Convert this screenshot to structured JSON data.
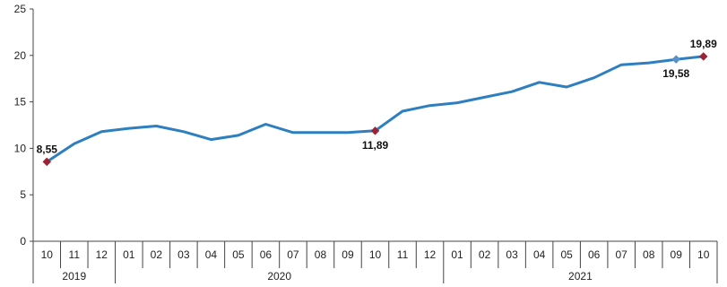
{
  "chart_data": {
    "type": "line",
    "title": "",
    "xlabel": "",
    "ylabel": "",
    "ylim": [
      0,
      25
    ],
    "yticks": [
      "0",
      "5",
      "10",
      "15",
      "20",
      "25"
    ],
    "grid": false,
    "legend": "none",
    "line_color": "#2E7FC0",
    "marker_color": "#9B2335",
    "categories": [
      "10",
      "11",
      "12",
      "01",
      "02",
      "03",
      "04",
      "05",
      "06",
      "07",
      "08",
      "09",
      "10",
      "11",
      "12",
      "01",
      "02",
      "03",
      "04",
      "05",
      "06",
      "07",
      "08",
      "09",
      "10"
    ],
    "years": [
      {
        "label": "2019",
        "start": 0,
        "end": 2
      },
      {
        "label": "2020",
        "start": 3,
        "end": 14
      },
      {
        "label": "2021",
        "start": 15,
        "end": 24
      }
    ],
    "series": [
      {
        "values": [
          8.55,
          10.5,
          11.8,
          12.15,
          12.4,
          11.8,
          10.95,
          11.4,
          12.6,
          11.7,
          11.7,
          11.7,
          11.89,
          14.0,
          14.6,
          14.9,
          15.5,
          16.1,
          17.1,
          16.6,
          17.6,
          19.0,
          19.2,
          19.58,
          19.89
        ]
      }
    ],
    "annotations": [
      {
        "index": 0,
        "label": "8,55",
        "marker": "diamond-red",
        "position": "above"
      },
      {
        "index": 12,
        "label": "11,89",
        "marker": "diamond-red",
        "position": "below"
      },
      {
        "index": 23,
        "label": "19,58",
        "marker": "diamond-blue",
        "position": "below"
      },
      {
        "index": 24,
        "label": "19,89",
        "marker": "diamond-red",
        "position": "above"
      }
    ]
  }
}
